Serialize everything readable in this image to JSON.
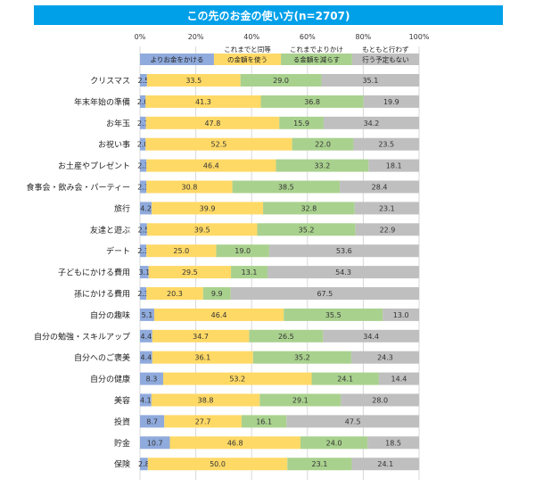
{
  "chart_data": {
    "type": "bar",
    "orientation": "horizontal",
    "stacked": true,
    "title": "この先のお金の使い方(n=2707)",
    "xlim": [
      0,
      100
    ],
    "x_ticks": [
      "0%",
      "20%",
      "40%",
      "60%",
      "80%",
      "100%"
    ],
    "grid": true,
    "legend_position": "top",
    "categories": [
      "クリスマス",
      "年末年始の準備",
      "お年玉",
      "お祝い事",
      "お土産やプレゼント",
      "食事会・飲み会・パーティー",
      "旅行",
      "友達と遊ぶ",
      "デート",
      "子どもにかける費用",
      "孫にかける費用",
      "自分の趣味",
      "自分の勉強・スキルアップ",
      "自分へのご褒美",
      "自分の健康",
      "美容",
      "投資",
      "貯金",
      "保険"
    ],
    "series": [
      {
        "name": "よりお金をかける",
        "color": "#8faadc",
        "values": [
          2.5,
          2.0,
          2.1,
          2.0,
          2.3,
          2.3,
          4.2,
          2.5,
          2.3,
          3.1,
          2.3,
          5.1,
          4.4,
          4.4,
          8.3,
          4.1,
          8.7,
          10.7,
          2.8
        ]
      },
      {
        "name": "これまでと同等の金額を使う",
        "color": "#ffd966",
        "values": [
          33.5,
          41.3,
          47.8,
          52.5,
          46.4,
          30.8,
          39.9,
          39.5,
          25.0,
          29.5,
          20.3,
          46.4,
          34.7,
          36.1,
          53.2,
          38.8,
          27.7,
          46.8,
          50.0
        ]
      },
      {
        "name": "これまでよりかける金額を減らす",
        "color": "#a9d18e",
        "values": [
          29.0,
          36.8,
          15.9,
          22.0,
          33.2,
          38.5,
          32.8,
          35.2,
          19.0,
          13.1,
          9.9,
          35.5,
          26.5,
          35.2,
          24.1,
          29.1,
          16.1,
          24.0,
          23.1
        ]
      },
      {
        "name": "もともと行わず行う予定もない",
        "color": "#bfbfbf",
        "values": [
          35.1,
          19.9,
          34.2,
          23.5,
          18.1,
          28.4,
          23.1,
          22.9,
          53.6,
          54.3,
          67.5,
          13.0,
          34.4,
          24.3,
          14.4,
          28.0,
          47.5,
          18.5,
          24.1
        ]
      }
    ],
    "legend_labels": [
      [
        "よりお金をかける"
      ],
      [
        "これまでと同等",
        "の金額を使う"
      ],
      [
        "これまでよりかけ",
        "る金額を減らす"
      ],
      [
        "もともと行わず",
        "行う予定もない"
      ]
    ]
  }
}
